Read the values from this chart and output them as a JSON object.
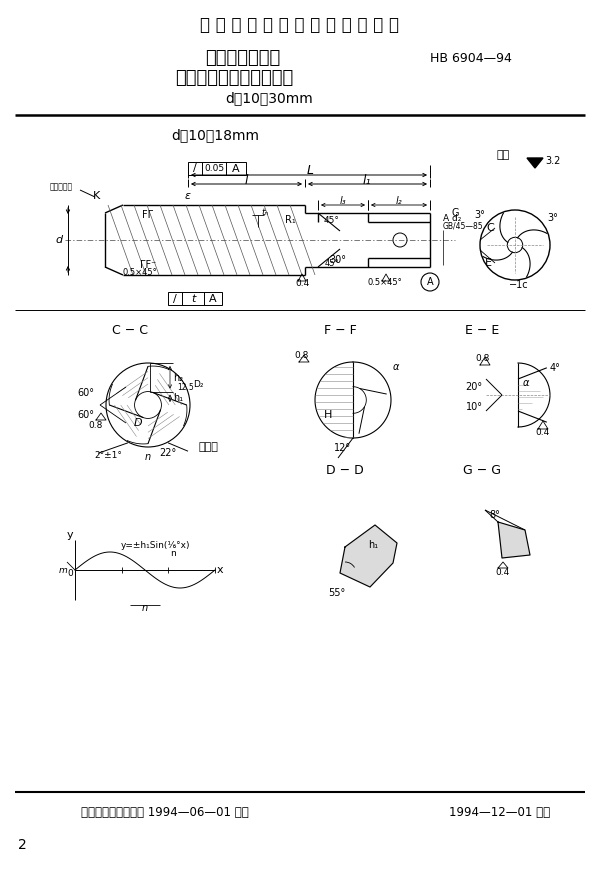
{
  "bg_color": "#ffffff",
  "page_width": 6.0,
  "page_height": 8.71,
  "header_title": "中 华 人 民 共 和 国 航 空 工 业 标 准",
  "title_line1": "数控醓床用四齿",
  "title_line2": "削平型直柄粗加工立醓刀",
  "title_line3": "d＝10～30mm",
  "standard_num": "HB 6904—94",
  "section_title": "d＝10～18mm",
  "footer_left": "中国航空工业总公司 1994—06—01 发布",
  "footer_right": "1994—12—01 实施",
  "page_num": "2",
  "text_color": "#000000",
  "line_color": "#000000"
}
